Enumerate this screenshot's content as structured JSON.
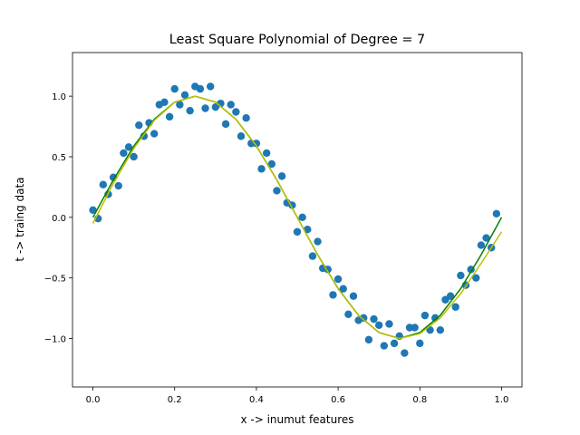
{
  "chart_data": {
    "type": "scatter",
    "title": "Least Square Polynomial of Degree = 7",
    "title_color": "#ff0000",
    "x_label": "x -> inumut features",
    "y_label": "t -> traing data",
    "xlim": [
      -0.05,
      1.05
    ],
    "ylim": [
      -1.4,
      1.36
    ],
    "xticks": [
      {
        "value": 0,
        "label": "0.0"
      },
      {
        "value": 0.2,
        "label": "0.2"
      },
      {
        "value": 0.4,
        "label": "0.4"
      },
      {
        "value": 0.6,
        "label": "0.6"
      },
      {
        "value": 0.8,
        "label": "0.8"
      },
      {
        "value": 1,
        "label": "1.0"
      }
    ],
    "yticks": [
      {
        "value": -1,
        "label": "−1.0"
      },
      {
        "value": -0.5,
        "label": "−0.5"
      },
      {
        "value": 0,
        "label": "0.0"
      },
      {
        "value": 0.5,
        "label": "0.5"
      },
      {
        "value": 1,
        "label": "1.0"
      }
    ],
    "series": [
      {
        "type": "scatter",
        "color": "#1f77b4",
        "x": [
          0,
          0.0125,
          0.025,
          0.0375,
          0.05,
          0.0625,
          0.075,
          0.0875,
          0.1,
          0.1125,
          0.125,
          0.1375,
          0.15,
          0.1625,
          0.175,
          0.1875,
          0.2,
          0.2125,
          0.225,
          0.2375,
          0.25,
          0.2625,
          0.275,
          0.2875,
          0.3,
          0.3125,
          0.325,
          0.3375,
          0.35,
          0.3625,
          0.375,
          0.3875,
          0.4,
          0.4125,
          0.425,
          0.4375,
          0.45,
          0.4625,
          0.475,
          0.4875,
          0.5,
          0.5125,
          0.525,
          0.5375,
          0.55,
          0.5625,
          0.575,
          0.5875,
          0.6,
          0.6125,
          0.625,
          0.6375,
          0.65,
          0.6625,
          0.675,
          0.6875,
          0.7,
          0.7125,
          0.725,
          0.7375,
          0.75,
          0.7625,
          0.775,
          0.7875,
          0.8,
          0.8125,
          0.825,
          0.8375,
          0.85,
          0.8625,
          0.875,
          0.8875,
          0.9,
          0.9125,
          0.925,
          0.9375,
          0.95,
          0.9625,
          0.975,
          0.9875
        ],
        "values": [
          0.06,
          -0.01,
          0.27,
          0.19,
          0.33,
          0.26,
          0.53,
          0.58,
          0.5,
          0.76,
          0.67,
          0.78,
          0.69,
          0.93,
          0.95,
          0.83,
          1.06,
          0.93,
          1.01,
          0.88,
          1.08,
          1.06,
          0.9,
          1.08,
          0.91,
          0.94,
          0.77,
          0.93,
          0.87,
          0.67,
          0.82,
          0.61,
          0.61,
          0.4,
          0.53,
          0.44,
          0.22,
          0.34,
          0.12,
          0.1,
          -0.12,
          0,
          -0.1,
          -0.32,
          -0.2,
          -0.42,
          -0.43,
          -0.64,
          -0.51,
          -0.59,
          -0.8,
          -0.65,
          -0.85,
          -0.83,
          -1.01,
          -0.84,
          -0.89,
          -1.06,
          -0.88,
          -1.04,
          -0.98,
          -1.12,
          -0.91,
          -0.91,
          -1.04,
          -0.81,
          -0.93,
          -0.83,
          -0.93,
          -0.68,
          -0.65,
          -0.74,
          -0.48,
          -0.56,
          -0.43,
          -0.5,
          -0.23,
          -0.17,
          -0.25,
          0.03
        ]
      },
      {
        "type": "line",
        "color": "#008000",
        "x": [
          0,
          0.05,
          0.1,
          0.15,
          0.2,
          0.25,
          0.3,
          0.35,
          0.4,
          0.45,
          0.5,
          0.55,
          0.6,
          0.65,
          0.7,
          0.75,
          0.8,
          0.85,
          0.9,
          0.95,
          1
        ],
        "values": [
          0,
          0.309,
          0.588,
          0.809,
          0.951,
          1,
          0.951,
          0.809,
          0.588,
          0.309,
          0,
          -0.309,
          -0.588,
          -0.809,
          -0.951,
          -1,
          -0.951,
          -0.809,
          -0.588,
          -0.309,
          0
        ]
      },
      {
        "type": "line",
        "color": "#bfbf00",
        "x": [
          0,
          0.05,
          0.1,
          0.15,
          0.2,
          0.25,
          0.3,
          0.35,
          0.4,
          0.45,
          0.5,
          0.55,
          0.6,
          0.65,
          0.7,
          0.75,
          0.8,
          0.85,
          0.9,
          0.95,
          1
        ],
        "values": [
          -0.05,
          0.28,
          0.57,
          0.8,
          0.95,
          1,
          0.95,
          0.81,
          0.59,
          0.31,
          0,
          -0.31,
          -0.59,
          -0.81,
          -0.95,
          -1,
          -0.96,
          -0.83,
          -0.63,
          -0.38,
          -0.12
        ]
      }
    ]
  }
}
